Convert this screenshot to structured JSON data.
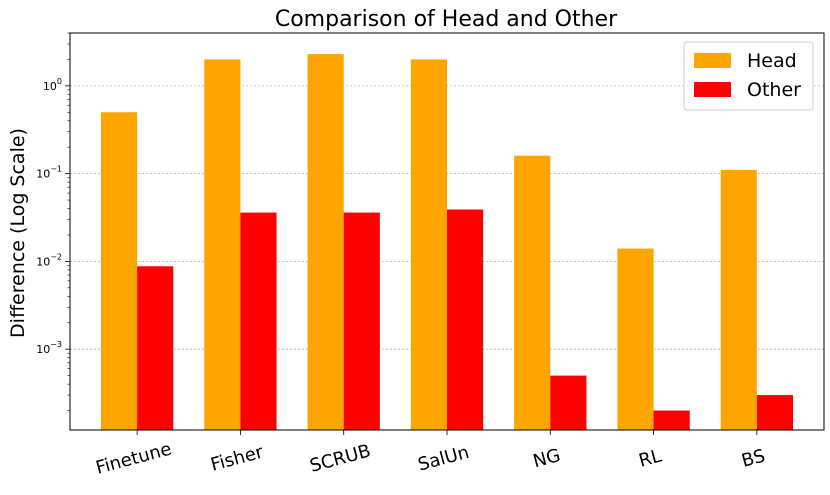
{
  "chart_data": {
    "type": "bar",
    "title": "Comparison of Head and Other",
    "xlabel": "",
    "ylabel": "Difference (Log Scale)",
    "yscale": "log",
    "ylim": [
      0.00012,
      4
    ],
    "grid": "y-dashed",
    "legend_position": "top-right",
    "categories": [
      "Finetune",
      "Fisher",
      "SCRUB",
      "SalUn",
      "NG",
      "RL",
      "BS"
    ],
    "series": [
      {
        "name": "Head",
        "color": "#FFA500",
        "values": [
          0.5,
          2.0,
          2.3,
          2.0,
          0.16,
          0.014,
          0.11
        ]
      },
      {
        "name": "Other",
        "color": "#FF0000",
        "values": [
          0.0088,
          0.036,
          0.036,
          0.039,
          0.0005,
          0.0002,
          0.0003
        ]
      }
    ],
    "ytick_labels": [
      {
        "value": 1,
        "base": "10",
        "exp": "0"
      },
      {
        "value": 0.1,
        "base": "10",
        "exp": "−1"
      },
      {
        "value": 0.01,
        "base": "10",
        "exp": "−2"
      },
      {
        "value": 0.001,
        "base": "10",
        "exp": "−3"
      }
    ]
  }
}
